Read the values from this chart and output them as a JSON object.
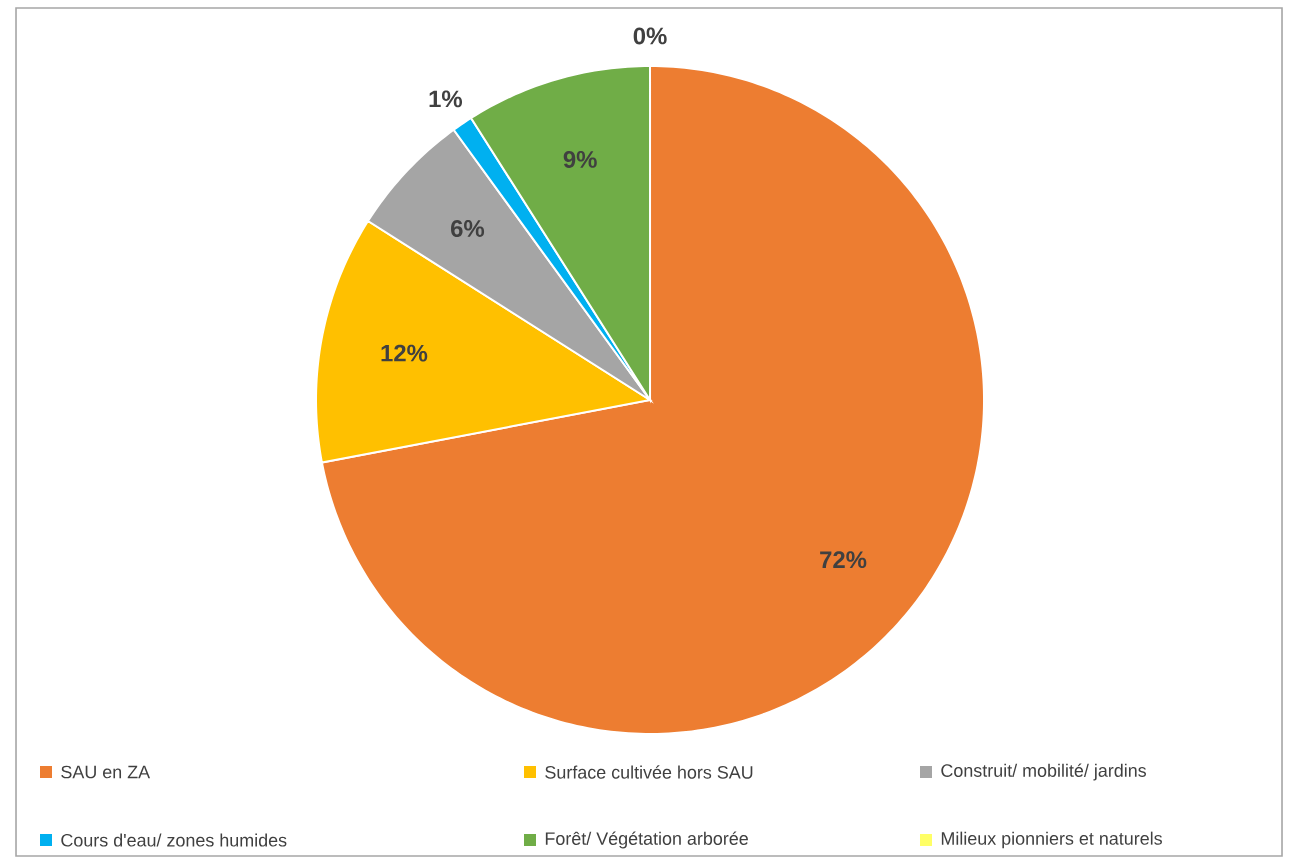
{
  "chart_data": {
    "type": "pie",
    "categories": [
      "SAU en ZA",
      "Surface cultivée hors SAU",
      "Construit/ mobilité/ jardins",
      "Cours d'eau/ zones humides",
      "Forêt/ Végétation arborée",
      "Milieux pionniers et naturels"
    ],
    "values": [
      72,
      12,
      6,
      1,
      9,
      0
    ],
    "value_labels": [
      "72%",
      "12%",
      "6%",
      "1%",
      "9%",
      "0%"
    ],
    "colors": [
      "#ed7d31",
      "#ffc000",
      "#a5a5a5",
      "#00b0f0",
      "#70ad47",
      "#ffff66"
    ],
    "legend": "bottom"
  }
}
